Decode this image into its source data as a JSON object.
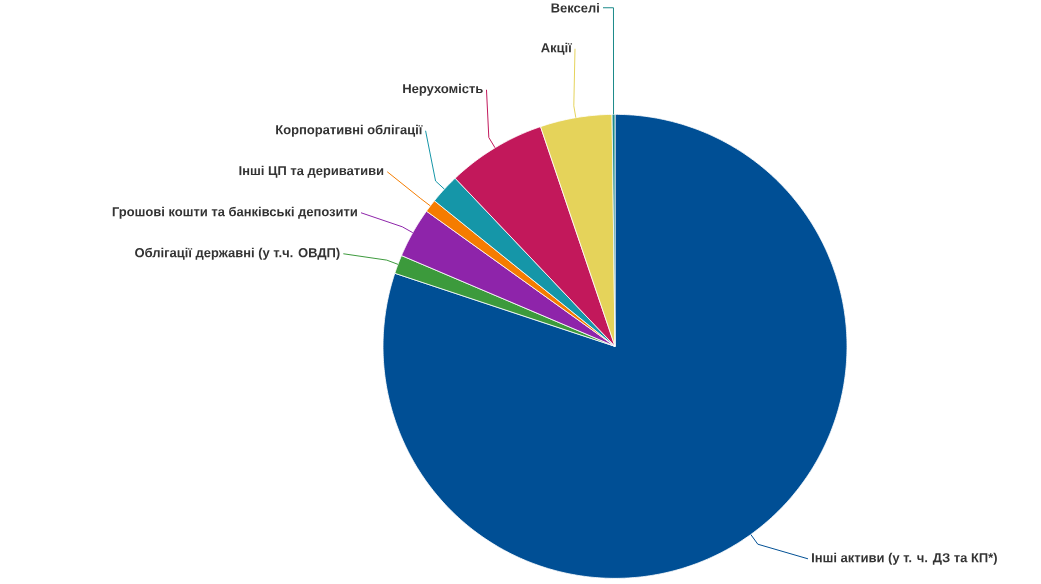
{
  "chart_data": {
    "type": "pie",
    "categories": [
      "Інші активи (у т. ч. ДЗ та КП*)",
      "Облігації державні (у т.ч. ОВДП)",
      "Грошові кошти та банківські депозити",
      "Інші ЦП та деривативи",
      "Корпоративні облігації",
      "Нерухомість",
      "Акції",
      "Векселі"
    ],
    "values": [
      80.1,
      1.3,
      3.5,
      0.9,
      2.1,
      6.9,
      5.0,
      0.2
    ],
    "colors": [
      "#004f95",
      "#3c9a3c",
      "#8e24aa",
      "#f57c00",
      "#1596a8",
      "#c2185b",
      "#e5d35a",
      "#1a8a8a"
    ]
  }
}
